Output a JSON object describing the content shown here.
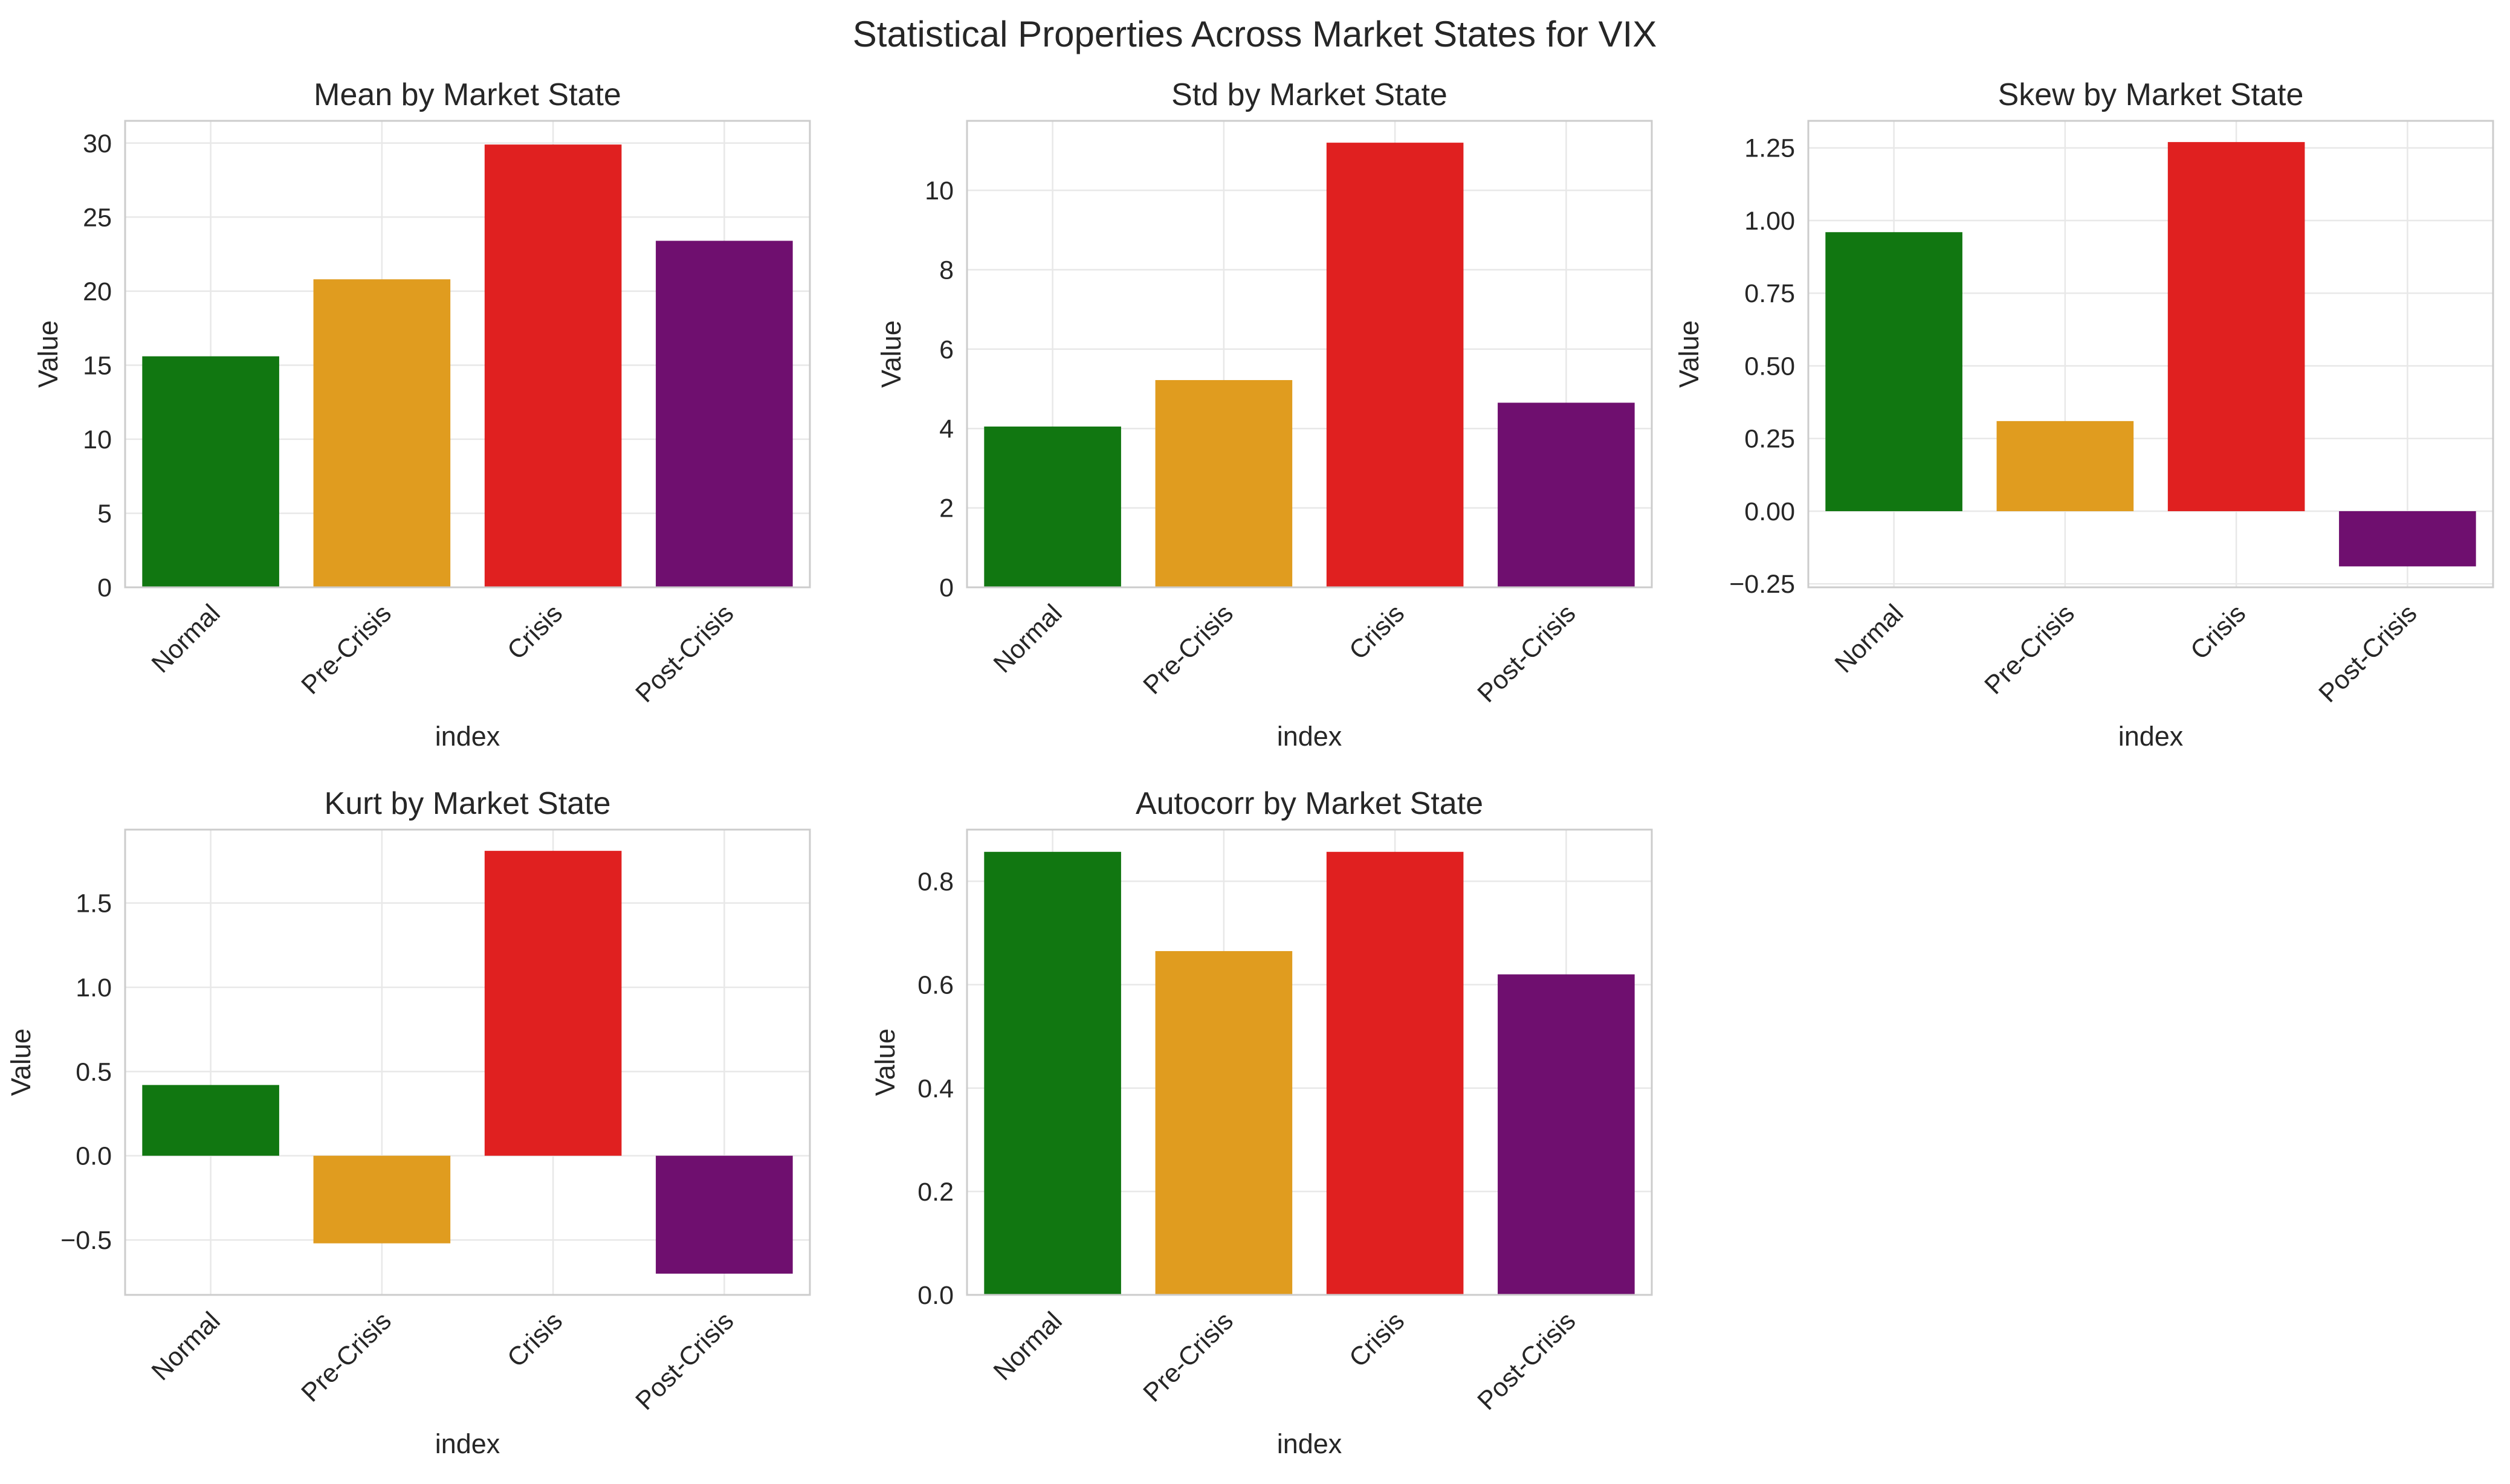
{
  "figure": {
    "suptitle": "Statistical Properties Across Market States for VIX"
  },
  "colors": {
    "Normal": "#117711",
    "Pre-Crisis": "#e09c1f",
    "Crisis": "#e02020",
    "Post-Crisis": "#6f0f6f",
    "axes_edge": "#cccccc",
    "grid": "#e8e8e8"
  },
  "chart_data": [
    {
      "type": "bar",
      "title": "Mean by Market State",
      "xlabel": "index",
      "ylabel": "Value",
      "categories": [
        "Normal",
        "Pre-Crisis",
        "Crisis",
        "Post-Crisis"
      ],
      "values": [
        15.6,
        20.8,
        29.9,
        23.4
      ],
      "ylim": [
        0,
        31.5
      ],
      "yticks": [
        0,
        5,
        10,
        15,
        20,
        25,
        30
      ],
      "ytick_labels": [
        "0",
        "5",
        "10",
        "15",
        "20",
        "25",
        "30"
      ],
      "grid": true
    },
    {
      "type": "bar",
      "title": "Std by Market State",
      "xlabel": "index",
      "ylabel": "Value",
      "categories": [
        "Normal",
        "Pre-Crisis",
        "Crisis",
        "Post-Crisis"
      ],
      "values": [
        4.05,
        5.22,
        11.2,
        4.65
      ],
      "ylim": [
        0,
        11.75
      ],
      "yticks": [
        0,
        2,
        4,
        6,
        8,
        10
      ],
      "ytick_labels": [
        "0",
        "2",
        "4",
        "6",
        "8",
        "10"
      ],
      "grid": true
    },
    {
      "type": "bar",
      "title": "Skew by Market State",
      "xlabel": "index",
      "ylabel": "Value",
      "categories": [
        "Normal",
        "Pre-Crisis",
        "Crisis",
        "Post-Crisis"
      ],
      "values": [
        0.96,
        0.31,
        1.27,
        -0.19
      ],
      "ylim": [
        -0.262,
        1.343
      ],
      "yticks": [
        -0.25,
        0,
        0.25,
        0.5,
        0.75,
        1.0,
        1.25
      ],
      "ytick_labels": [
        "−0.25",
        "0.00",
        "0.25",
        "0.50",
        "0.75",
        "1.00",
        "1.25"
      ],
      "grid": true
    },
    {
      "type": "bar",
      "title": "Kurt by Market State",
      "xlabel": "index",
      "ylabel": "Value",
      "categories": [
        "Normal",
        "Pre-Crisis",
        "Crisis",
        "Post-Crisis"
      ],
      "values": [
        0.42,
        -0.52,
        1.81,
        -0.7
      ],
      "ylim": [
        -0.826,
        1.936
      ],
      "yticks": [
        -0.5,
        0,
        0.5,
        1.0,
        1.5
      ],
      "ytick_labels": [
        "−0.5",
        "0.0",
        "0.5",
        "1.0",
        "1.5"
      ],
      "grid": true
    },
    {
      "type": "bar",
      "title": "Autocorr by Market State",
      "xlabel": "index",
      "ylabel": "Value",
      "categories": [
        "Normal",
        "Pre-Crisis",
        "Crisis",
        "Post-Crisis"
      ],
      "values": [
        0.857,
        0.665,
        0.857,
        0.62
      ],
      "ylim": [
        0,
        0.9
      ],
      "yticks": [
        0,
        0.2,
        0.4,
        0.6,
        0.8
      ],
      "ytick_labels": [
        "0.0",
        "0.2",
        "0.4",
        "0.6",
        "0.8"
      ],
      "grid": true
    }
  ]
}
